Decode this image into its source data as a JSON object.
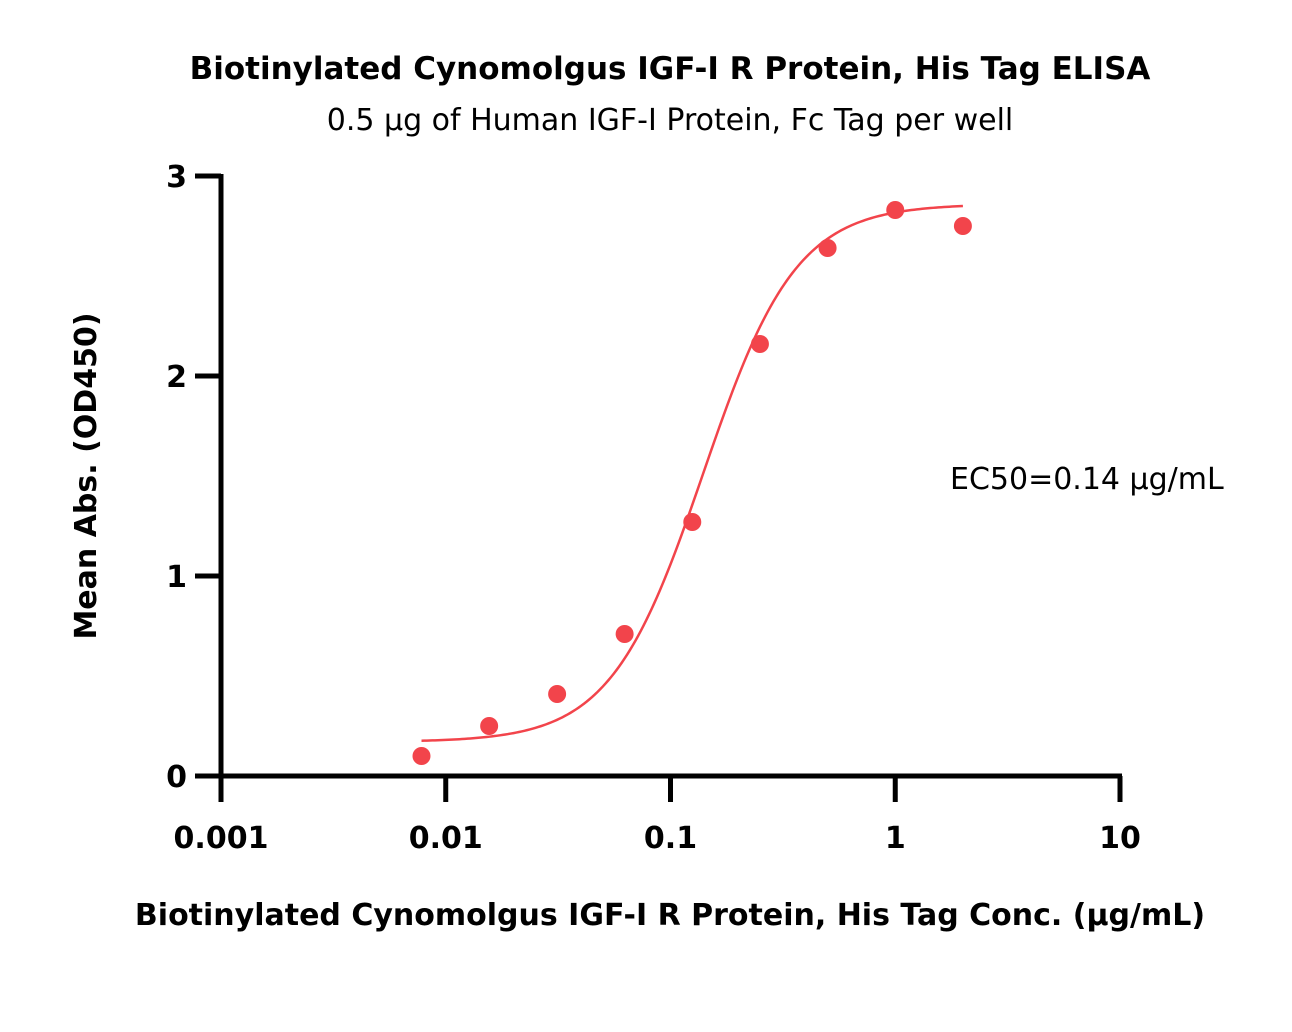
{
  "chart_data": {
    "type": "scatter",
    "title": "Biotinylated Cynomolgus IGF-I R Protein, His Tag ELISA",
    "subtitle": "0.5 µg of Human IGF-I Protein, Fc Tag per well",
    "xlabel": "Biotinylated Cynomolgus IGF-I R Protein, His Tag Conc. (µg/mL)",
    "ylabel": "Mean Abs. (OD450)",
    "x_scale": "log",
    "xlim": [
      0.001,
      10
    ],
    "ylim": [
      0,
      3
    ],
    "x_ticks": [
      0.001,
      0.01,
      0.1,
      1,
      10
    ],
    "x_tick_labels": [
      "0.001",
      "0.01",
      "0.1",
      "1",
      "10"
    ],
    "y_ticks": [
      0,
      1,
      2,
      3
    ],
    "y_tick_labels": [
      "0",
      "1",
      "2",
      "3"
    ],
    "grid": false,
    "series": [
      {
        "color": "#f2444b",
        "x": [
          0.0078,
          0.0156,
          0.0313,
          0.0625,
          0.125,
          0.25,
          0.5,
          1.0,
          2.0
        ],
        "y": [
          0.1,
          0.25,
          0.41,
          0.71,
          1.27,
          2.16,
          2.64,
          2.83,
          2.75
        ]
      }
    ],
    "fit": {
      "model": "4PL",
      "bottom": 0.17,
      "top": 2.86,
      "ec50": 0.14,
      "hill": 2.1,
      "x_range": [
        0.0078,
        2.0
      ]
    },
    "annotations": [
      "EC50=0.14 µg/mL"
    ]
  }
}
